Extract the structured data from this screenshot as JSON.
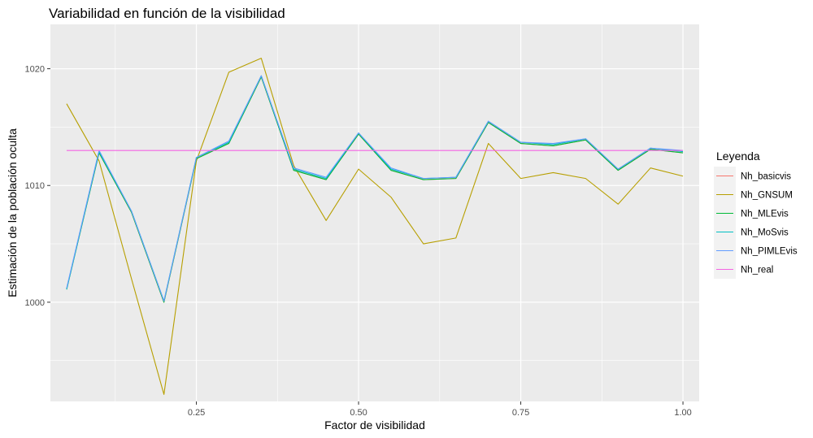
{
  "chart_data": {
    "type": "line",
    "title": "Variabilidad en función de la visibilidad",
    "xlabel": "Factor de visibilidad",
    "ylabel": "Estimación de la población oculta",
    "xlim": [
      0.025,
      1.025
    ],
    "ylim": [
      991.5,
      1023.8
    ],
    "x_ticks": [
      0.25,
      0.5,
      0.75,
      1.0
    ],
    "x_tick_labels": [
      "0.25",
      "0.50",
      "0.75",
      "1.00"
    ],
    "y_ticks": [
      1000,
      1010,
      1020
    ],
    "y_tick_labels": [
      "1000",
      "1010",
      "1020"
    ],
    "grid": true,
    "legend": {
      "title": "Leyenda",
      "position": "right"
    },
    "x": [
      0.05,
      0.1,
      0.15,
      0.2,
      0.25,
      0.3,
      0.35,
      0.4,
      0.45,
      0.5,
      0.55,
      0.6,
      0.65,
      0.7,
      0.75,
      0.8,
      0.85,
      0.9,
      0.95,
      1.0
    ],
    "series": [
      {
        "name": "Nh_basicvis",
        "color": "#F8766D",
        "values": [
          1001.1,
          1012.8,
          1007.7,
          1000.0,
          1012.3,
          1013.6,
          1019.3,
          1011.3,
          1010.5,
          1014.4,
          1011.3,
          1010.5,
          1010.6,
          1015.4,
          1013.6,
          1013.4,
          1013.9,
          1011.3,
          1013.1,
          1012.8
        ]
      },
      {
        "name": "Nh_GNSUM",
        "color": "#B79F00",
        "values": [
          1017.0,
          1012.1,
          1002.0,
          992.1,
          1012.1,
          1019.7,
          1020.9,
          1011.7,
          1007.0,
          1011.4,
          1009.0,
          1005.0,
          1005.5,
          1013.6,
          1010.6,
          1011.1,
          1010.6,
          1008.4,
          1011.5,
          1010.8
        ]
      },
      {
        "name": "Nh_MLEvis",
        "color": "#00BA38",
        "values": [
          1001.1,
          1012.8,
          1007.7,
          1000.0,
          1012.3,
          1013.6,
          1019.3,
          1011.3,
          1010.5,
          1014.4,
          1011.3,
          1010.5,
          1010.6,
          1015.4,
          1013.6,
          1013.4,
          1013.9,
          1011.3,
          1013.1,
          1012.8
        ]
      },
      {
        "name": "Nh_MoSvis",
        "color": "#00BFC4",
        "values": [
          1001.1,
          1012.9,
          1007.8,
          1000.1,
          1012.4,
          1013.7,
          1019.4,
          1011.4,
          1010.6,
          1014.5,
          1011.4,
          1010.6,
          1010.7,
          1015.5,
          1013.7,
          1013.5,
          1014.0,
          1011.4,
          1013.2,
          1012.9
        ]
      },
      {
        "name": "Nh_PIMLEvis",
        "color": "#619CFF",
        "values": [
          1001.2,
          1013.0,
          1007.8,
          1000.1,
          1012.4,
          1013.8,
          1019.4,
          1011.5,
          1010.7,
          1014.5,
          1011.5,
          1010.6,
          1010.7,
          1015.5,
          1013.7,
          1013.6,
          1014.0,
          1011.4,
          1013.2,
          1013.0
        ]
      },
      {
        "name": "Nh_real",
        "color": "#F564E3",
        "values": [
          1013.0,
          1013.0,
          1013.0,
          1013.0,
          1013.0,
          1013.0,
          1013.0,
          1013.0,
          1013.0,
          1013.0,
          1013.0,
          1013.0,
          1013.0,
          1013.0,
          1013.0,
          1013.0,
          1013.0,
          1013.0,
          1013.0,
          1013.0
        ]
      }
    ]
  }
}
